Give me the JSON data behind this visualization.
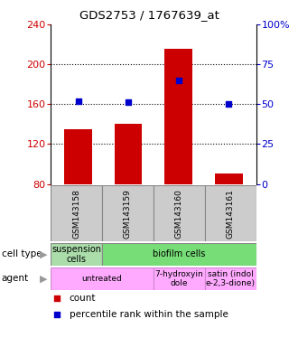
{
  "title": "GDS2753 / 1767639_at",
  "samples": [
    "GSM143158",
    "GSM143159",
    "GSM143160",
    "GSM143161"
  ],
  "bar_values": [
    135,
    140,
    215,
    90
  ],
  "bar_color": "#cc0000",
  "scatter_values_pct": [
    52,
    51,
    65,
    50
  ],
  "scatter_color": "#0000cc",
  "ylim_left": [
    80,
    240
  ],
  "ylim_right": [
    0,
    100
  ],
  "yticks_left": [
    80,
    120,
    160,
    200,
    240
  ],
  "yticks_right": [
    0,
    25,
    50,
    75,
    100
  ],
  "ytick_labels_right": [
    "0",
    "25",
    "50",
    "75",
    "100%"
  ],
  "left_axis_color": "#cc0000",
  "right_axis_color": "#0000cc",
  "cell_type_cells": [
    {
      "text": "suspension\ncells",
      "color": "#aaddaa",
      "span": 1
    },
    {
      "text": "biofilm cells",
      "color": "#77dd77",
      "span": 3
    }
  ],
  "agent_cells": [
    {
      "text": "untreated",
      "color": "#ffaaff",
      "span": 2
    },
    {
      "text": "7-hydroxyin\ndole",
      "color": "#ffaaff",
      "span": 1
    },
    {
      "text": "satin (indol\ne-2,3-dione)",
      "color": "#ffaaff",
      "span": 1
    }
  ],
  "legend_count_color": "#cc0000",
  "legend_pct_color": "#0000cc",
  "bar_width": 0.55
}
